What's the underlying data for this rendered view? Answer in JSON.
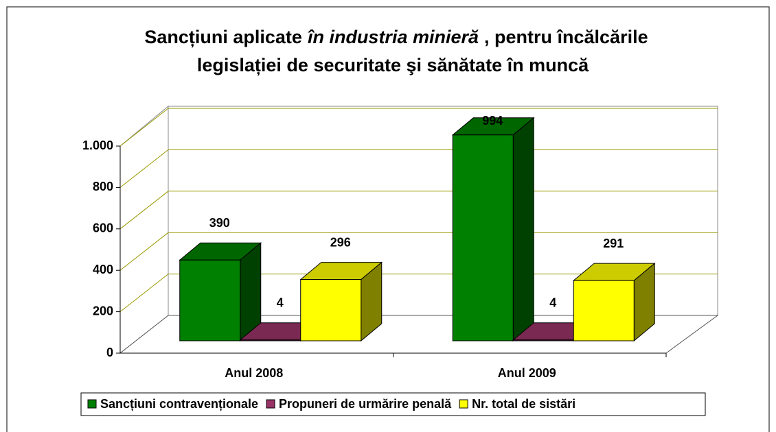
{
  "chart_data": {
    "type": "bar3d",
    "title": [
      "Sancțiuni aplicate",
      "în industria minieră",
      ", pentru încălcările",
      "legislației de securitate şi sănătate în muncă"
    ],
    "categories": [
      "Anul 2008",
      "Anul 2009"
    ],
    "series": [
      {
        "name": "Sancțiuni contravenționale",
        "color": "#008000",
        "values": [
          390,
          994
        ]
      },
      {
        "name": "Propuneri de urmărire penală",
        "color": "#993366",
        "values": [
          4,
          4
        ]
      },
      {
        "name": "Nr. total de sistări",
        "color": "#ffff00",
        "values": [
          296,
          291
        ]
      }
    ],
    "ylim": [
      0,
      1000
    ],
    "yticks": [
      0,
      200,
      400,
      600,
      800,
      {
        "value": 1000,
        "label": "1.000"
      }
    ],
    "grid": true,
    "legend": "bottom"
  }
}
